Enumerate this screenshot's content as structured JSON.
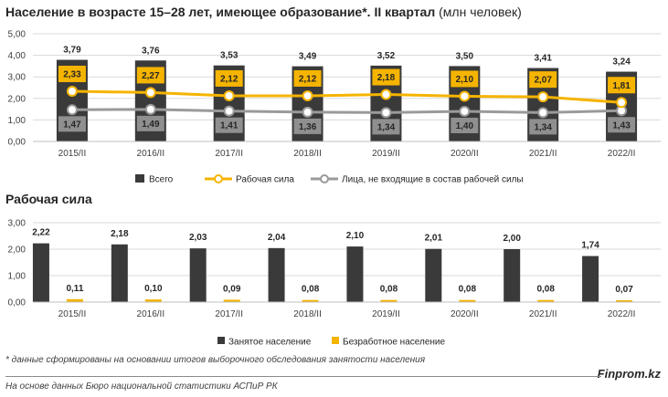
{
  "colors": {
    "dark_bar": "#3a3a3a",
    "orange": "#f5b400",
    "gray_line": "#9a9a9a",
    "label_box_gray": "#8f8f8f"
  },
  "texts": {
    "title_main": "Население в возрасте 15–28 лет, имеющее образование*. II квартал",
    "title_unit": "(млн человек)",
    "title_second": "Рабочая сила",
    "footnote": "* данные сформированы на основании итогов выборочного обследования занятости населения",
    "source": "На основе данных Бюро национальной статистики АСПиР РК",
    "brand": "Finprom.kz"
  },
  "chart_data": [
    {
      "type": "bar",
      "categories": [
        "2015/II",
        "2016/II",
        "2017/II",
        "2018/II",
        "2019/II",
        "2020/II",
        "2021/II",
        "2022/II"
      ],
      "series": [
        {
          "name": "Всего",
          "kind": "bar",
          "values": [
            3.79,
            3.76,
            3.53,
            3.49,
            3.52,
            3.5,
            3.41,
            3.24
          ]
        },
        {
          "name": "Рабочая сила",
          "kind": "line",
          "values": [
            2.33,
            2.27,
            2.12,
            2.12,
            2.18,
            2.1,
            2.07,
            1.81
          ]
        },
        {
          "name": "Лица, не входящие в состав рабочей силы",
          "kind": "line",
          "values": [
            1.47,
            1.49,
            1.41,
            1.36,
            1.34,
            1.4,
            1.34,
            1.43
          ]
        }
      ],
      "ylim": [
        0,
        5
      ],
      "yticks": [
        "0,00",
        "1,00",
        "2,00",
        "3,00",
        "4,00",
        "5,00"
      ],
      "grid": true,
      "legend": "bottom"
    },
    {
      "type": "bar",
      "categories": [
        "2015/II",
        "2016/II",
        "2017/II",
        "2018/II",
        "2019/II",
        "2020/II",
        "2021/II",
        "2022/II"
      ],
      "series": [
        {
          "name": "Занятое население",
          "values": [
            2.22,
            2.18,
            2.03,
            2.04,
            2.1,
            2.01,
            2.0,
            1.74
          ]
        },
        {
          "name": "Безработное население",
          "values": [
            0.11,
            0.1,
            0.09,
            0.08,
            0.08,
            0.08,
            0.08,
            0.07
          ]
        }
      ],
      "ylim": [
        0,
        3
      ],
      "yticks": [
        "0,00",
        "1,00",
        "2,00",
        "3,00"
      ],
      "grid": true,
      "legend": "bottom"
    }
  ]
}
